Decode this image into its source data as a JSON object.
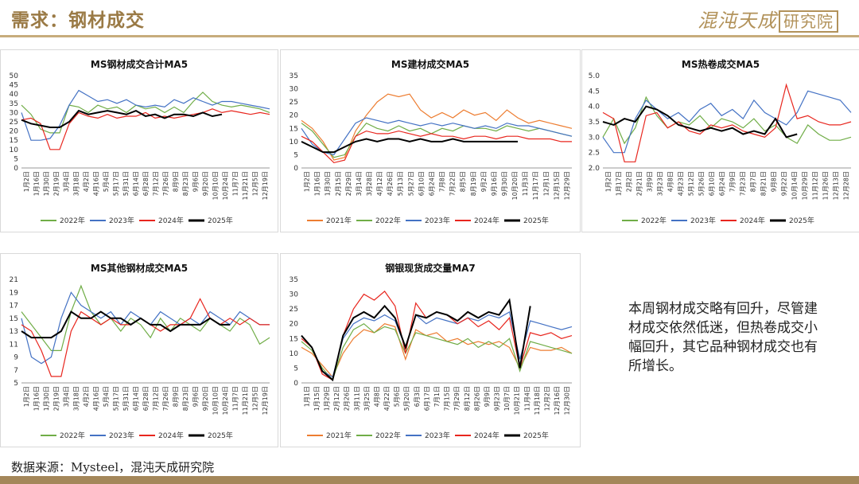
{
  "header": {
    "title": "需求：钢材成交",
    "logo_text": "混沌天成",
    "logo_box": "研究院"
  },
  "colors": {
    "accent": "#9a7a45",
    "rule": "#c7ac7c",
    "footer": "#a4875a",
    "s2021": "#ed7d31",
    "s2022": "#70ad47",
    "s2023": "#4472c4",
    "s2024": "#e8261e",
    "s2025": "#000000"
  },
  "summary": "本周钢材成交略有回升，尽管建材成交依然低迷，但热卷成交小幅回升，其它品种钢材成交也有所增长。",
  "source": "数据来源：Mysteel，混沌天成研究院",
  "chart_data": [
    {
      "id": "total",
      "type": "line",
      "title": "MS钢材成交合计MA5",
      "ylim": [
        0,
        50
      ],
      "yticks": [
        0,
        5,
        10,
        15,
        20,
        25,
        30,
        35,
        40,
        45,
        50
      ],
      "ytick_labels": [
        "0",
        "5",
        "10",
        "15",
        "20",
        "25",
        "30",
        "35",
        "40",
        "45",
        "50"
      ],
      "xlabels": [
        "1月2日",
        "1月16日",
        "1月30日",
        "2月19日",
        "3月4日",
        "3月18日",
        "4月2日",
        "4月16日",
        "5月4日",
        "5月17日",
        "5月31日",
        "6月14日",
        "6月28日",
        "7月12日",
        "7月26日",
        "8月9日",
        "8月23日",
        "9月6日",
        "9月20日",
        "10月10日",
        "10月24日",
        "11月7日",
        "11月21日",
        "12月5日",
        "12月19日"
      ],
      "grid": false,
      "legend_position": "bottom",
      "series": [
        {
          "name": "2022年",
          "values": [
            34,
            29,
            21,
            19,
            19,
            34,
            33,
            30,
            34,
            32,
            33,
            30,
            34,
            32,
            33,
            30,
            33,
            30,
            36,
            41,
            36,
            34,
            33,
            34,
            33,
            32,
            30
          ]
        },
        {
          "name": "2023年",
          "values": [
            30,
            15,
            15,
            16,
            23,
            34,
            42,
            39,
            36,
            37,
            35,
            37,
            34,
            33,
            34,
            33,
            37,
            35,
            38,
            36,
            34,
            36,
            36,
            35,
            34,
            33,
            32
          ]
        },
        {
          "name": "2024年",
          "values": [
            26,
            27,
            24,
            10,
            10,
            24,
            30,
            28,
            27,
            29,
            27,
            28,
            28,
            30,
            27,
            28,
            27,
            28,
            29,
            30,
            32,
            30,
            31,
            30,
            29,
            30,
            29
          ]
        },
        {
          "name": "2025年",
          "values": [
            26,
            24,
            23,
            22,
            22,
            25,
            31,
            29,
            30,
            31,
            30,
            29,
            31,
            28,
            29,
            27,
            29,
            29,
            28,
            30,
            28,
            29,
            null,
            null,
            null,
            null,
            null
          ]
        }
      ]
    },
    {
      "id": "construction",
      "type": "line",
      "title": "MS建材成交MA5",
      "ylim": [
        0,
        35
      ],
      "yticks": [
        0,
        5,
        10,
        15,
        20,
        25,
        30,
        35
      ],
      "ytick_labels": [
        "0",
        "5",
        "10",
        "15",
        "20",
        "25",
        "30",
        "35"
      ],
      "xlabels": [
        "1月2日",
        "1月16日",
        "1月30日",
        "2月15日",
        "2月29日",
        "3月14日",
        "3月28日",
        "4月12日",
        "4月26日",
        "5月13日",
        "5月27日",
        "6月10日",
        "6月24日",
        "7月8日",
        "7月22日",
        "8月5日",
        "8月19日",
        "9月2日",
        "9月16日",
        "9月30日",
        "10月20日",
        "11月3日",
        "11月17日",
        "12月1日",
        "12月15日",
        "12月29日"
      ],
      "grid": false,
      "legend_position": "bottom",
      "series": [
        {
          "name": "2021年",
          "values": [
            18,
            15,
            10,
            3,
            4,
            14,
            20,
            25,
            28,
            27,
            28,
            22,
            19,
            21,
            19,
            22,
            20,
            21,
            18,
            22,
            19,
            17,
            18,
            17,
            16,
            15
          ]
        },
        {
          "name": "2022年",
          "values": [
            17,
            14,
            9,
            4,
            5,
            12,
            17,
            15,
            14,
            16,
            14,
            15,
            13,
            15,
            14,
            16,
            15,
            15,
            14,
            16,
            15,
            14,
            15,
            14,
            13,
            12
          ]
        },
        {
          "name": "2023年",
          "values": [
            15,
            9,
            6,
            5,
            11,
            17,
            19,
            18,
            17,
            18,
            17,
            16,
            17,
            16,
            17,
            16,
            15,
            16,
            15,
            17,
            16,
            16,
            15,
            14,
            13,
            12
          ]
        },
        {
          "name": "2024年",
          "values": [
            12,
            10,
            6,
            2,
            3,
            12,
            14,
            13,
            13,
            14,
            13,
            12,
            13,
            12,
            12,
            11,
            12,
            12,
            11,
            12,
            12,
            11,
            11,
            11,
            10,
            10
          ]
        },
        {
          "name": "2025年",
          "values": [
            10,
            8,
            6,
            6,
            8,
            10,
            11,
            10,
            11,
            11,
            10,
            11,
            10,
            10,
            11,
            10,
            10,
            10,
            10,
            10,
            10,
            null,
            null,
            null,
            null,
            null
          ]
        }
      ]
    },
    {
      "id": "hotcoil",
      "type": "line",
      "title": "MS热卷成交MA5",
      "ylim": [
        2.0,
        5.0
      ],
      "yticks": [
        2.0,
        2.5,
        3.0,
        3.5,
        4.0,
        4.5,
        5.0
      ],
      "ytick_labels": [
        "2.0",
        "2.5",
        "3.0",
        "3.5",
        "4.0",
        "4.5",
        "5.0"
      ],
      "xlabels": [
        "1月2日",
        "1月17日",
        "2月2日",
        "2月21日",
        "3月9日",
        "3月23日",
        "4月8日",
        "4月23日",
        "5月12日",
        "5月26日",
        "6月10日",
        "6月24日",
        "7月9日",
        "7月23日",
        "8月7日",
        "8月21日",
        "9月8日",
        "9月22日",
        "10月14日",
        "10月29日",
        "11月12日",
        "11月26日",
        "12月13日",
        "12月28日"
      ],
      "grid": false,
      "legend_position": "bottom",
      "series": [
        {
          "name": "2022年",
          "values": [
            3.0,
            3.6,
            2.8,
            3.3,
            4.3,
            3.7,
            3.3,
            3.5,
            3.4,
            3.7,
            3.3,
            3.6,
            3.5,
            3.3,
            3.6,
            3.2,
            3.4,
            3.0,
            2.8,
            3.4,
            3.1,
            2.9,
            2.9,
            3.0
          ]
        },
        {
          "name": "2023年",
          "values": [
            3.0,
            2.5,
            2.5,
            3.6,
            4.2,
            3.9,
            3.6,
            3.8,
            3.5,
            3.9,
            4.1,
            3.7,
            3.9,
            3.6,
            4.2,
            3.8,
            3.6,
            3.4,
            3.8,
            4.5,
            4.4,
            4.3,
            4.2,
            3.8
          ]
        },
        {
          "name": "2024年",
          "values": [
            3.8,
            3.6,
            2.2,
            2.2,
            3.7,
            3.8,
            3.3,
            3.5,
            3.2,
            3.1,
            3.4,
            3.3,
            3.4,
            3.2,
            3.1,
            3.0,
            3.3,
            4.7,
            3.6,
            3.7,
            3.5,
            3.4,
            3.4,
            3.5
          ]
        },
        {
          "name": "2025年",
          "values": [
            3.5,
            3.4,
            3.6,
            3.5,
            4.0,
            3.9,
            3.7,
            3.4,
            3.3,
            3.2,
            3.3,
            3.2,
            3.3,
            3.1,
            3.2,
            3.1,
            3.6,
            3.0,
            3.1,
            null,
            null,
            null,
            null,
            null
          ]
        }
      ]
    },
    {
      "id": "other",
      "type": "line",
      "title": "MS其他钢材成交MA5",
      "ylim": [
        5,
        21
      ],
      "yticks": [
        5,
        7,
        9,
        11,
        13,
        15,
        17,
        19,
        21
      ],
      "ytick_labels": [
        "5",
        "7",
        "9",
        "11",
        "13",
        "15",
        "17",
        "19",
        "21"
      ],
      "xlabels": [
        "1月2日",
        "1月16日",
        "1月30日",
        "2月19日",
        "3月4日",
        "3月18日",
        "4月2日",
        "4月16日",
        "5月4日",
        "5月17日",
        "5月31日",
        "6月14日",
        "6月28日",
        "7月12日",
        "7月26日",
        "8月9日",
        "8月23日",
        "9月6日",
        "9月20日",
        "10月10日",
        "10月24日",
        "11月7日",
        "11月21日",
        "12月5日",
        "12月19日"
      ],
      "grid": false,
      "legend_position": "bottom",
      "series": [
        {
          "name": "2022年",
          "values": [
            16,
            14,
            12,
            10,
            10,
            16,
            20,
            16,
            14,
            15,
            13,
            15,
            14,
            12,
            15,
            13,
            15,
            14,
            13,
            15,
            14,
            13,
            15,
            14,
            11,
            12
          ]
        },
        {
          "name": "2023年",
          "values": [
            15,
            9,
            8,
            9,
            15,
            19,
            17,
            16,
            15,
            16,
            14,
            16,
            15,
            14,
            16,
            15,
            14,
            15,
            14,
            16,
            15,
            14,
            16,
            15,
            14,
            14
          ]
        },
        {
          "name": "2024年",
          "values": [
            14,
            13,
            10,
            6,
            6,
            13,
            16,
            15,
            14,
            15,
            14,
            14,
            15,
            14,
            13,
            14,
            14,
            15,
            18,
            15,
            14,
            15,
            14,
            15,
            14,
            14
          ]
        },
        {
          "name": "2025年",
          "values": [
            13,
            12,
            12,
            12,
            13,
            16,
            15,
            15,
            16,
            15,
            15,
            14,
            15,
            14,
            14,
            13,
            14,
            14,
            14,
            15,
            14,
            14,
            null,
            null,
            null,
            null
          ]
        }
      ]
    },
    {
      "id": "bank",
      "type": "line",
      "title": "钢银现货成交量MA7",
      "ylim": [
        0,
        35
      ],
      "yticks": [
        0,
        5,
        10,
        15,
        20,
        25,
        30,
        35
      ],
      "ytick_labels": [
        "0",
        "5",
        "10",
        "15",
        "20",
        "25",
        "30",
        "35"
      ],
      "xlabels": [
        "1月1日",
        "1月15日",
        "1月29日",
        "2月12日",
        "2月26日",
        "3月11日",
        "3月25日",
        "4月8日",
        "4月22日",
        "5月6日",
        "5月20日",
        "6月3日",
        "6月17日",
        "7月1日",
        "7月15日",
        "7月29日",
        "8月12日",
        "8月26日",
        "9月9日",
        "9月23日",
        "10月7日",
        "10月21日",
        "11月4日",
        "11月18日",
        "12月2日",
        "12月16日",
        "12月30日"
      ],
      "grid": false,
      "legend_position": "bottom",
      "series": [
        {
          "name": "2021年",
          "values": [
            12,
            10,
            6,
            2,
            10,
            15,
            18,
            17,
            20,
            19,
            8,
            18,
            16,
            17,
            14,
            15,
            13,
            14,
            13,
            14,
            12,
            5,
            12,
            11,
            11,
            12,
            10
          ]
        },
        {
          "name": "2022年",
          "values": [
            14,
            11,
            5,
            1,
            12,
            18,
            20,
            17,
            19,
            18,
            10,
            17,
            16,
            15,
            14,
            13,
            15,
            12,
            14,
            12,
            15,
            4,
            14,
            13,
            12,
            11,
            10
          ]
        },
        {
          "name": "2023年",
          "values": [
            16,
            12,
            4,
            2,
            15,
            20,
            22,
            21,
            23,
            21,
            12,
            23,
            20,
            22,
            21,
            20,
            22,
            21,
            23,
            22,
            24,
            8,
            21,
            20,
            19,
            18,
            19
          ]
        },
        {
          "name": "2024年",
          "values": [
            15,
            12,
            3,
            1,
            16,
            25,
            30,
            28,
            31,
            26,
            10,
            27,
            22,
            24,
            23,
            20,
            22,
            19,
            21,
            18,
            22,
            5,
            17,
            16,
            17,
            15,
            16
          ]
        },
        {
          "name": "2025年",
          "values": [
            16,
            12,
            4,
            1,
            16,
            22,
            24,
            22,
            26,
            22,
            12,
            23,
            22,
            24,
            23,
            21,
            24,
            22,
            24,
            23,
            28,
            5,
            26,
            null,
            null,
            null,
            null
          ]
        }
      ]
    }
  ]
}
